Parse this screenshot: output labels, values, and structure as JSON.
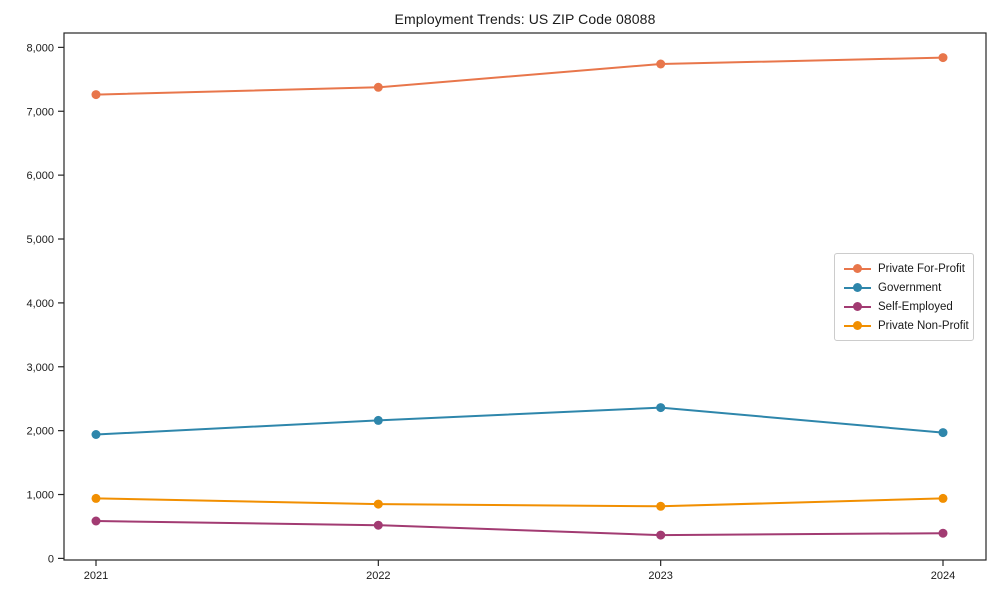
{
  "chart_data": {
    "type": "line",
    "title": "Employment Trends: US ZIP Code 08088",
    "categories": [
      "2021",
      "2022",
      "2023",
      "2024"
    ],
    "series": [
      {
        "name": "Private For-Profit",
        "color": "#E8764B",
        "values": [
          7260,
          7375,
          7740,
          7840
        ]
      },
      {
        "name": "Government",
        "color": "#2E86AB",
        "values": [
          1940,
          2160,
          2360,
          1970
        ]
      },
      {
        "name": "Self-Employed",
        "color": "#A23B72",
        "values": [
          585,
          520,
          365,
          395
        ]
      },
      {
        "name": "Private Non-Profit",
        "color": "#F18F01",
        "values": [
          940,
          850,
          815,
          940
        ]
      }
    ],
    "xlabel": "",
    "ylabel": "",
    "ylim": [
      0,
      8000
    ],
    "y_ticks": [
      0,
      1000,
      2000,
      3000,
      4000,
      5000,
      6000,
      7000,
      8000
    ],
    "y_tick_labels": [
      "0",
      "1,000",
      "2,000",
      "3,000",
      "4,000",
      "5,000",
      "6,000",
      "7,000",
      "8,000"
    ],
    "grid": false,
    "legend_position": "center right",
    "marker": "circle",
    "axis_color": "#262626"
  }
}
